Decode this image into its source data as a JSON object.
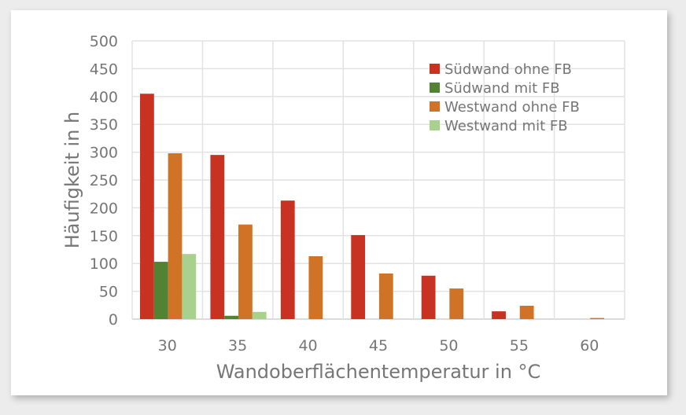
{
  "chart_data": {
    "type": "bar",
    "title": "",
    "xlabel": "Wandoberflächentemperatur in °C",
    "ylabel": "Häufigkeit in h",
    "ylim": [
      0,
      500
    ],
    "yticks": [
      0,
      50,
      100,
      150,
      200,
      250,
      300,
      350,
      400,
      450,
      500
    ],
    "grid": true,
    "legend_position": "top-right inside",
    "categories": [
      "30",
      "35",
      "40",
      "45",
      "50",
      "55",
      "60"
    ],
    "series": [
      {
        "name": "Südwand ohne FB",
        "color": "#c73222",
        "values": [
          405,
          295,
          213,
          151,
          78,
          14,
          0
        ]
      },
      {
        "name": "Südwand mit FB",
        "color": "#548235",
        "values": [
          103,
          6,
          0,
          0,
          0,
          0,
          0
        ]
      },
      {
        "name": "Westwand ohne FB",
        "color": "#d17326",
        "values": [
          298,
          170,
          113,
          82,
          55,
          24,
          2
        ]
      },
      {
        "name": "Westwand mit FB",
        "color": "#a9d18e",
        "values": [
          117,
          13,
          0,
          0,
          0,
          0,
          0
        ]
      }
    ]
  }
}
